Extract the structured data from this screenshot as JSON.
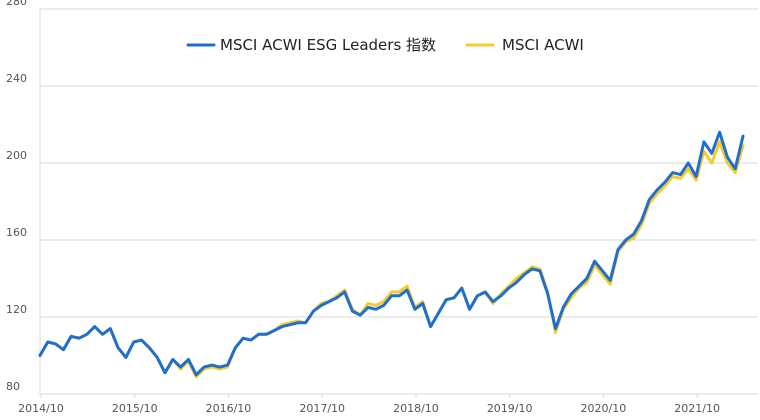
{
  "chart_data": {
    "type": "line",
    "title": "",
    "xlabel": "",
    "ylabel": "",
    "ylim": [
      80,
      280
    ],
    "yticks": [
      80,
      120,
      160,
      200,
      240,
      280
    ],
    "xtick_labels": [
      "2014/10",
      "2015/10",
      "2016/10",
      "2017/10",
      "2018/10",
      "2019/10",
      "2020/10",
      "2021/10"
    ],
    "grid": true,
    "legend_position": "top-center",
    "series": [
      {
        "name": "MSCI ACWI ESG Leaders 指数",
        "color": "#1f6fd1",
        "values": [
          100,
          107,
          106,
          103,
          110,
          109,
          111,
          115,
          111,
          114,
          104,
          99,
          107,
          108,
          104,
          99,
          91,
          98,
          94,
          98,
          90,
          94,
          95,
          94,
          95,
          104,
          109,
          108,
          111,
          111,
          113,
          115,
          116,
          117,
          117,
          123,
          126,
          128,
          130,
          133,
          123,
          121,
          125,
          124,
          126,
          131,
          131,
          134,
          124,
          127,
          115,
          122,
          129,
          130,
          135,
          124,
          131,
          133,
          128,
          131,
          135,
          138,
          142,
          145,
          144,
          132,
          114,
          125,
          132,
          136,
          140,
          149,
          144,
          139,
          155,
          160,
          163,
          170,
          181,
          186,
          190,
          195,
          194,
          200,
          193,
          211,
          205,
          216,
          203,
          197,
          214
        ]
      },
      {
        "name": "MSCI ACWI",
        "color": "#f5cc2a",
        "values": [
          100,
          107,
          106,
          103,
          110,
          109,
          111,
          115,
          111,
          114,
          104,
          99,
          107,
          108,
          104,
          99,
          91,
          98,
          93,
          97,
          89,
          93,
          94,
          93,
          94,
          104,
          109,
          108,
          111,
          111,
          113,
          116,
          117,
          118,
          117,
          123,
          127,
          128,
          131,
          134,
          124,
          121,
          127,
          126,
          128,
          133,
          133,
          136,
          125,
          128,
          115,
          122,
          129,
          130,
          135,
          124,
          131,
          133,
          127,
          132,
          136,
          140,
          143,
          146,
          145,
          133,
          112,
          124,
          130,
          135,
          138,
          147,
          142,
          137,
          154,
          159,
          161,
          168,
          179,
          184,
          188,
          193,
          192,
          197,
          191,
          206,
          200,
          211,
          200,
          195,
          209
        ]
      }
    ]
  }
}
